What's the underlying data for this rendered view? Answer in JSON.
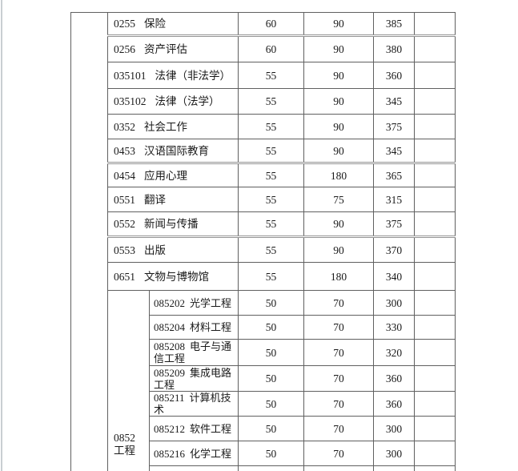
{
  "colors": {
    "table_border": "#606060",
    "text": "#1a1a1a",
    "page_edge_line": "#c9ced2",
    "page_background": "#ffffff"
  },
  "table": {
    "group_cell": {
      "code": "0852",
      "name": "工程"
    },
    "rows": [
      {
        "code": "0255",
        "name": "保险",
        "score1": "60",
        "score2": "90",
        "total": "385"
      },
      {
        "code": "0256",
        "name": "资产评估",
        "score1": "60",
        "score2": "90",
        "total": "380"
      },
      {
        "code": "035101",
        "name": "法律（非法学）",
        "score1": "55",
        "score2": "90",
        "total": "360"
      },
      {
        "code": "035102",
        "name": "法律（法学）",
        "score1": "55",
        "score2": "90",
        "total": "345"
      },
      {
        "code": "0352",
        "name": "社会工作",
        "score1": "55",
        "score2": "90",
        "total": "375"
      },
      {
        "code": "0453",
        "name": "汉语国际教育",
        "score1": "55",
        "score2": "90",
        "total": "345"
      },
      {
        "code": "0454",
        "name": "应用心理",
        "score1": "55",
        "score2": "180",
        "total": "365"
      },
      {
        "code": "0551",
        "name": "翻译",
        "score1": "55",
        "score2": "75",
        "total": "315"
      },
      {
        "code": "0552",
        "name": "新闻与传播",
        "score1": "55",
        "score2": "90",
        "total": "375"
      },
      {
        "code": "0553",
        "name": "出版",
        "score1": "55",
        "score2": "90",
        "total": "370"
      },
      {
        "code": "0651",
        "name": "文物与博物馆",
        "score1": "55",
        "score2": "180",
        "total": "340"
      },
      {
        "code": "085202",
        "name": "光学工程",
        "score1": "50",
        "score2": "70",
        "total": "300",
        "sub": true
      },
      {
        "code": "085204",
        "name": "材料工程",
        "score1": "50",
        "score2": "70",
        "total": "330",
        "sub": true
      },
      {
        "code": "085208",
        "name": "电子与通信工程",
        "score1": "50",
        "score2": "70",
        "total": "320",
        "sub": true
      },
      {
        "code": "085209",
        "name": "集成电路工程",
        "score1": "50",
        "score2": "70",
        "total": "360",
        "sub": true
      },
      {
        "code": "085211",
        "name": "计算机技术",
        "score1": "50",
        "score2": "70",
        "total": "360",
        "sub": true
      },
      {
        "code": "085212",
        "name": "软件工程",
        "score1": "50",
        "score2": "70",
        "total": "300",
        "sub": true
      },
      {
        "code": "085216",
        "name": "化学工程",
        "score1": "50",
        "score2": "70",
        "total": "300",
        "sub": true
      }
    ]
  }
}
